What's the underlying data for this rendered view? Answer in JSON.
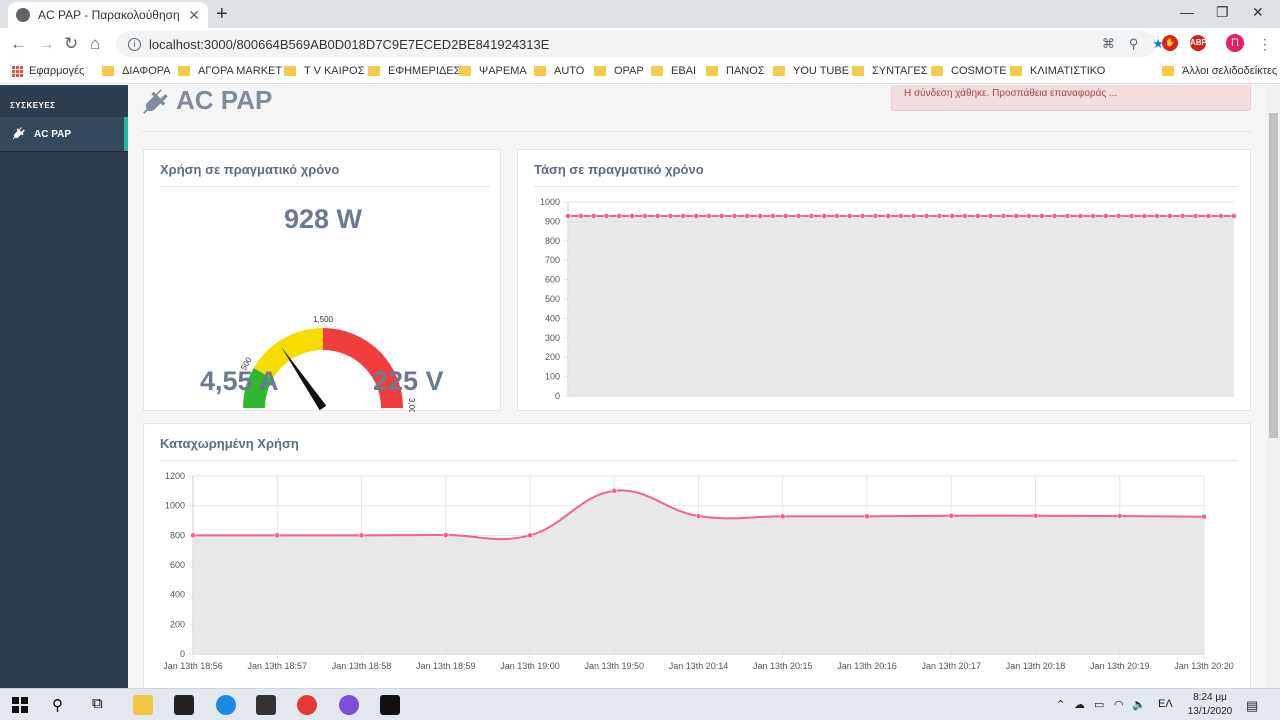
{
  "browser": {
    "tab_title": "AC PAP - Παρακολούθηση ενέργ",
    "url": "localhost:3000/800664B569AB0D018D7C9E7ECED2BE841924313E",
    "bookmarks": [
      "Εφαρμογές",
      "ΔΙΑΦΟΡΑ",
      "ΑΓΟΡΑ MARKET",
      "T V ΚΑΙΡΟΣ",
      "ΕΦΗΜΕΡΙΔΕΣ",
      "ΨΑΡΕΜΑ",
      "AUTO",
      "ΟΡΑΡ",
      "ΕΒΑΙ",
      "ΠΑΝΟΣ",
      "YOU TUBE",
      "ΣΥΝΤΑΓΕΣ",
      "COSMOTE",
      "ΚΛΙΜΑΤΙΣΤΙΚΟ"
    ],
    "other_bookmarks": "Άλλοι σελιδοδείκτες",
    "avatar_letter": "Π",
    "ext_abp": "ABP"
  },
  "sidebar": {
    "heading": "ΣΥΣΚΕΥΕΣ",
    "items": [
      {
        "label": "AC PAP",
        "icon": "plug-icon",
        "active": true
      }
    ],
    "accent": "#1abc9c"
  },
  "page": {
    "title": "AC PAP",
    "alert": "Η σύνδεση χάθηκε. Προσπάθεια επαναφοράς ..."
  },
  "realtime_usage": {
    "title": "Χρήση σε πραγματικό χρόνο",
    "watts": "928 W",
    "amps": "4,55 A",
    "volts": "225 V",
    "gauge": {
      "min": 0,
      "max": 3000,
      "value": 928,
      "ticks": [
        "500",
        "1,500",
        "3,000"
      ],
      "bands": [
        {
          "from": 0,
          "to": 500,
          "color": "#2eb82e"
        },
        {
          "from": 500,
          "to": 1500,
          "color": "#f7dc00"
        },
        {
          "from": 1500,
          "to": 3000,
          "color": "#f03e3e"
        }
      ]
    }
  },
  "charts": {
    "voltage": {
      "title": "Τάση σε πραγματικό χρόνο",
      "chart_data": {
        "type": "area",
        "ylim": [
          0,
          1000
        ],
        "yticks": [
          0,
          100,
          200,
          300,
          400,
          500,
          600,
          700,
          800,
          900,
          1000
        ],
        "values": [
          928,
          928,
          928,
          928,
          928,
          928,
          928,
          928,
          928,
          928,
          928,
          928,
          928,
          928,
          928,
          928,
          928,
          928,
          928,
          928,
          928,
          928,
          928,
          928,
          928,
          928,
          928,
          928,
          928,
          928,
          928,
          928,
          928,
          928,
          928,
          928,
          928,
          928,
          928,
          928,
          928,
          928,
          928,
          928,
          928,
          928,
          928,
          928,
          928,
          928,
          928,
          928,
          928
        ],
        "grid": true,
        "line_color": "#f06292",
        "fill_color": "#e4e4e4"
      }
    },
    "logged": {
      "title": "Καταχωρημένη Χρήση",
      "chart_data": {
        "type": "area",
        "categories": [
          "Jan 13th 18:56",
          "Jan 13th 18:57",
          "Jan 13th 18:58",
          "Jan 13th 18:59",
          "Jan 13th 19:00",
          "Jan 13th 19:50",
          "Jan 13th 20:14",
          "Jan 13th 20:15",
          "Jan 13th 20:16",
          "Jan 13th 20:17",
          "Jan 13th 20:18",
          "Jan 13th 20:19",
          "Jan 13th 20:20"
        ],
        "values": [
          800,
          800,
          800,
          802,
          800,
          1100,
          930,
          928,
          928,
          932,
          932,
          930,
          925
        ],
        "ylim": [
          0,
          1200
        ],
        "yticks": [
          0,
          200,
          400,
          600,
          800,
          1000,
          1200
        ],
        "grid": true,
        "line_color": "#f06292",
        "fill_color": "#e4e4e4"
      }
    }
  },
  "taskbar": {
    "lang": "ΕΛ",
    "time": "8:24 μμ",
    "date": "13/1/2020",
    "notifications": "1"
  }
}
